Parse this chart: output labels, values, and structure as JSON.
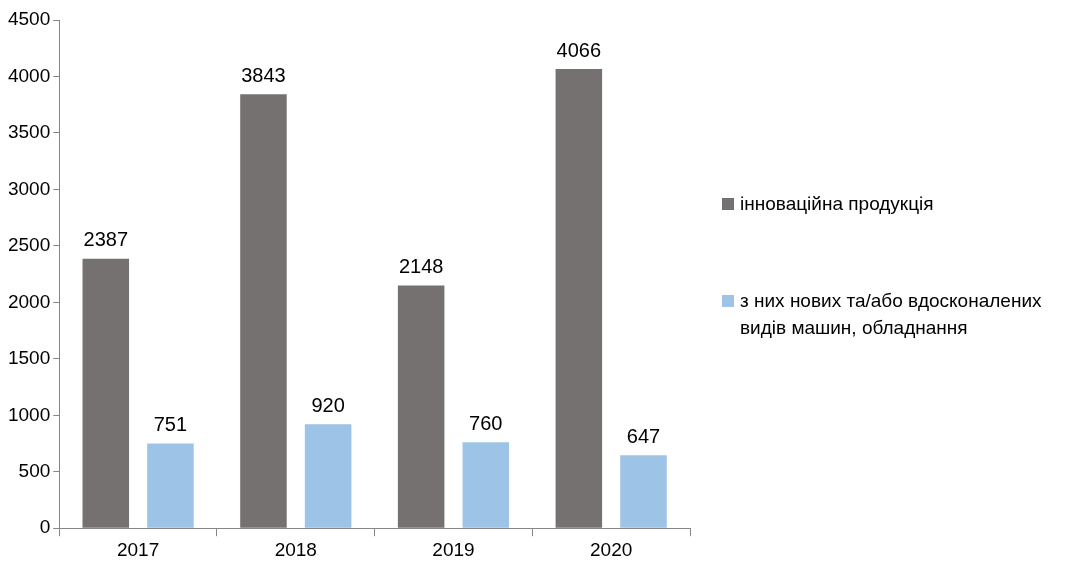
{
  "chart_data": {
    "type": "bar",
    "categories": [
      "2017",
      "2018",
      "2019",
      "2020"
    ],
    "series": [
      {
        "name": "інноваційна продукція",
        "color": "#767171",
        "values": [
          2387,
          3843,
          2148,
          4066
        ]
      },
      {
        "name": "з них нових та/або вдосконалених видів машин, обладнання",
        "color": "#9dc3e6",
        "values": [
          751,
          920,
          760,
          647
        ]
      }
    ],
    "ylim": [
      0,
      4500
    ],
    "yticks": [
      0,
      500,
      1000,
      1500,
      2000,
      2500,
      3000,
      3500,
      4000,
      4500
    ],
    "grid": false,
    "legend": "right",
    "data_labels": true
  }
}
